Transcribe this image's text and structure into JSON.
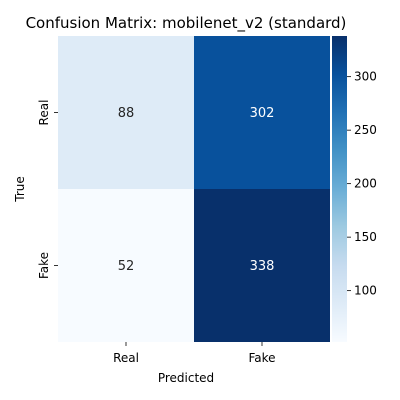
{
  "chart_data": {
    "type": "heatmap",
    "title": "Confusion Matrix: mobilenet_v2 (standard)",
    "xlabel": "Predicted",
    "ylabel": "True",
    "x_categories": [
      "Real",
      "Fake"
    ],
    "y_categories": [
      "Real",
      "Fake"
    ],
    "values": [
      [
        88,
        302
      ],
      [
        52,
        338
      ]
    ],
    "colormap": "Blues",
    "color_range": [
      52,
      338
    ],
    "colorbar_ticks": [
      100,
      150,
      200,
      250,
      300
    ],
    "colorbar_tick_labels": [
      "100",
      "150",
      "200",
      "250",
      "300"
    ],
    "grid": false,
    "colorbar_position": "right"
  }
}
